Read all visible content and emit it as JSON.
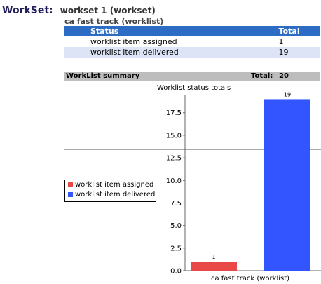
{
  "workset": {
    "label": "WorkSet:",
    "name": "workset 1 (workset)",
    "worklist_title": "ca fast track (worklist)"
  },
  "status_table": {
    "headers": {
      "status": "Status",
      "total": "Total"
    },
    "rows": [
      {
        "status": "worklist item assigned",
        "total": "1"
      },
      {
        "status": "worklist item delivered",
        "total": "19"
      }
    ]
  },
  "summary": {
    "label": "WorkList summary",
    "total_label": "Total:",
    "total_value": "20"
  },
  "colors": {
    "header_bg": "#2d6cc4",
    "alt_row_bg": "#dde4f6",
    "summary_bg": "#bdbdbd",
    "assigned": "#e84848",
    "delivered": "#3355ff"
  },
  "chart_data": {
    "type": "bar",
    "title": "Worklist status totals",
    "categories": [
      "ca fast track (worklist)"
    ],
    "series": [
      {
        "name": "worklist item assigned",
        "values": [
          1
        ],
        "color": "#e84848"
      },
      {
        "name": "worklist item delivered",
        "values": [
          19
        ],
        "color": "#3355ff"
      }
    ],
    "ylim": [
      0,
      19.5
    ],
    "yticks": [
      "0.0",
      "2.5",
      "5.0",
      "7.5",
      "10.0",
      "12.5",
      "15.0",
      "17.5"
    ],
    "data_labels": [
      "1",
      "19"
    ],
    "legend_position": "left",
    "grid": false
  }
}
